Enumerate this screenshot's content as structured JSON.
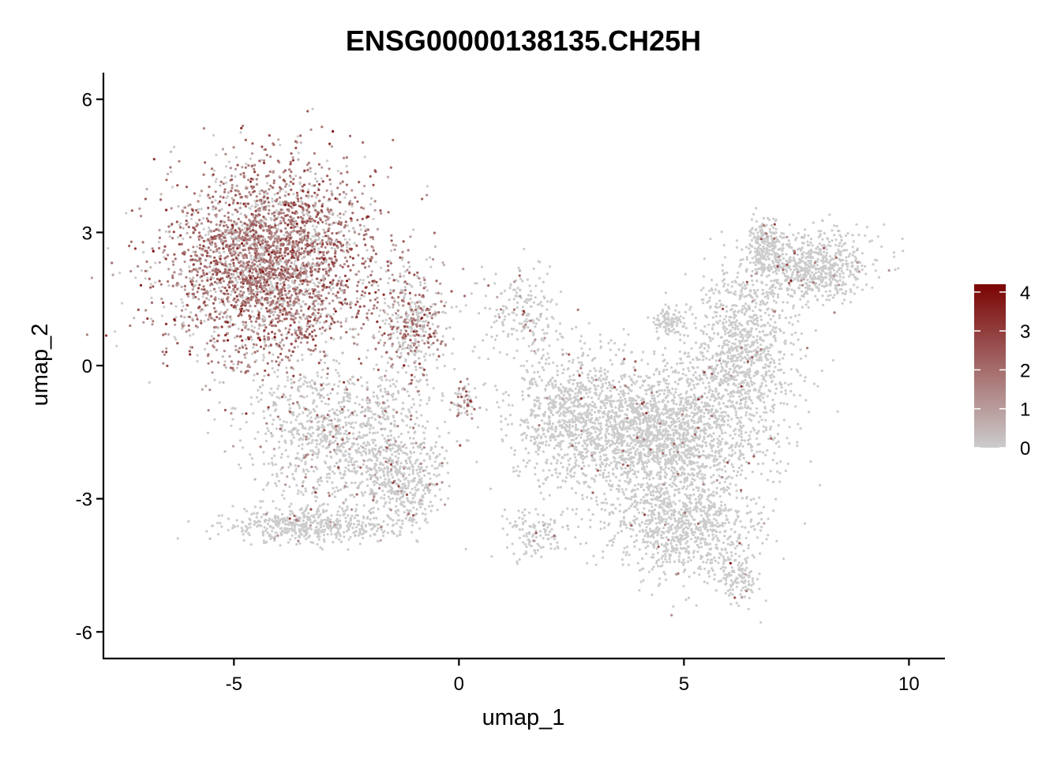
{
  "chart_data": {
    "type": "scatter",
    "title": "ENSG00000138135.CH25H",
    "xlabel": "umap_1",
    "ylabel": "umap_2",
    "xlim": [
      -7.9,
      10.8
    ],
    "ylim": [
      -6.6,
      6.6
    ],
    "x_ticks": [
      -5,
      0,
      5,
      10
    ],
    "x_tick_labels": [
      "-5",
      "0",
      "5",
      "10"
    ],
    "y_ticks": [
      -6,
      -3,
      0,
      3,
      6
    ],
    "y_tick_labels": [
      "-6",
      "-3",
      "0",
      "3",
      "6"
    ],
    "grid": false,
    "legend": {
      "type": "colorbar",
      "placement": "right",
      "range": [
        0,
        4.2
      ],
      "ticks": [
        0,
        1,
        2,
        3,
        4
      ],
      "tick_labels": [
        "0",
        "1",
        "2",
        "3",
        "4"
      ],
      "low_color": "#cccccc",
      "high_color": "#7a0403"
    },
    "point_color_low": "#cccccc",
    "point_color_high": "#7a0403",
    "clusters": [
      {
        "cx": -4.2,
        "cy": 2.3,
        "sx": 1.5,
        "sy": 1.45,
        "n": 3200,
        "expr_mean": 1.8,
        "expr_prob": 0.75
      },
      {
        "cx": -2.5,
        "cy": -1.6,
        "sx": 1.4,
        "sy": 1.1,
        "n": 1100,
        "expr_mean": 1.3,
        "expr_prob": 0.12
      },
      {
        "cx": -3.3,
        "cy": -3.6,
        "sx": 1.2,
        "sy": 0.25,
        "n": 500,
        "expr_mean": 1.2,
        "expr_prob": 0.05
      },
      {
        "cx": -1.2,
        "cy": -2.6,
        "sx": 0.6,
        "sy": 0.7,
        "n": 350,
        "expr_mean": 1.2,
        "expr_prob": 0.05
      },
      {
        "cx": -1.0,
        "cy": 0.9,
        "sx": 0.5,
        "sy": 0.8,
        "n": 400,
        "expr_mean": 1.6,
        "expr_prob": 0.45
      },
      {
        "cx": 0.15,
        "cy": -0.8,
        "sx": 0.15,
        "sy": 0.3,
        "n": 60,
        "expr_mean": 2.0,
        "expr_prob": 0.5
      },
      {
        "cx": 1.4,
        "cy": 1.2,
        "sx": 0.6,
        "sy": 0.7,
        "n": 200,
        "expr_mean": 1.6,
        "expr_prob": 0.1
      },
      {
        "cx": 4.3,
        "cy": -1.5,
        "sx": 1.6,
        "sy": 1.0,
        "n": 2200,
        "expr_mean": 1.8,
        "expr_prob": 0.02
      },
      {
        "cx": 5.0,
        "cy": -3.6,
        "sx": 1.1,
        "sy": 0.8,
        "n": 900,
        "expr_mean": 1.8,
        "expr_prob": 0.02
      },
      {
        "cx": 6.2,
        "cy": -4.8,
        "sx": 0.35,
        "sy": 0.4,
        "n": 120,
        "expr_mean": 1.8,
        "expr_prob": 0.03
      },
      {
        "cx": 6.3,
        "cy": 0.4,
        "sx": 0.8,
        "sy": 1.2,
        "n": 900,
        "expr_mean": 1.5,
        "expr_prob": 0.02
      },
      {
        "cx": 7.8,
        "cy": 2.2,
        "sx": 0.9,
        "sy": 0.5,
        "n": 700,
        "expr_mean": 1.5,
        "expr_prob": 0.03
      },
      {
        "cx": 6.8,
        "cy": 2.7,
        "sx": 0.25,
        "sy": 0.4,
        "n": 200,
        "expr_mean": 1.5,
        "expr_prob": 0.03
      },
      {
        "cx": 4.7,
        "cy": 1.0,
        "sx": 0.25,
        "sy": 0.2,
        "n": 100,
        "expr_mean": 1.5,
        "expr_prob": 0.02
      },
      {
        "cx": 2.4,
        "cy": -1.0,
        "sx": 0.8,
        "sy": 0.9,
        "n": 500,
        "expr_mean": 1.5,
        "expr_prob": 0.03
      },
      {
        "cx": 1.7,
        "cy": -3.8,
        "sx": 0.5,
        "sy": 0.4,
        "n": 120,
        "expr_mean": 1.5,
        "expr_prob": 0.02
      }
    ]
  }
}
